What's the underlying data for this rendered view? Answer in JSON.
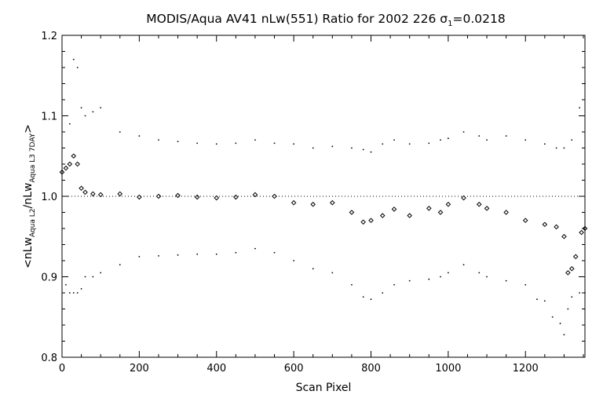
{
  "chart_data": {
    "type": "scatter",
    "title": "MODIS/Aqua AV41 nLw(551) Ratio for 2002 226 σ",
    "title_sub": "1",
    "title_suffix": "=0.0218",
    "xlabel": "Scan Pixel",
    "ylabel": {
      "prefix": "<nLw",
      "sub1": "Aqua L2",
      "middle": "/nLw",
      "sub2": "Aqua L3 7DAY",
      "suffix": ">"
    },
    "xlim": [
      0,
      1354
    ],
    "ylim": [
      0.8,
      1.2
    ],
    "x_ticks": [
      0,
      200,
      400,
      600,
      800,
      1000,
      1200
    ],
    "x_tick_labels": [
      "0",
      "200",
      "400",
      "600",
      "800",
      "1000",
      "1200"
    ],
    "y_ticks": [
      0.8,
      0.9,
      1.0,
      1.1,
      1.2
    ],
    "y_tick_labels": [
      "0.8",
      "0.9",
      "1.0",
      "1.1",
      "1.2"
    ],
    "reference_line": 1.0,
    "grid": false,
    "series": [
      {
        "role": "mean-ratio",
        "marker": "diamond",
        "x": [
          0,
          10,
          20,
          30,
          40,
          50,
          60,
          80,
          100,
          150,
          200,
          250,
          300,
          350,
          400,
          450,
          500,
          550,
          600,
          650,
          700,
          750,
          780,
          800,
          830,
          860,
          900,
          950,
          980,
          1000,
          1040,
          1080,
          1100,
          1150,
          1200,
          1250,
          1280,
          1300,
          1310,
          1320,
          1330,
          1345,
          1354
        ],
        "y": [
          1.03,
          1.035,
          1.04,
          1.05,
          1.04,
          1.01,
          1.005,
          1.003,
          1.002,
          1.003,
          0.999,
          1.0,
          1.001,
          0.999,
          0.998,
          0.999,
          1.002,
          1.0,
          0.992,
          0.99,
          0.992,
          0.98,
          0.968,
          0.97,
          0.976,
          0.984,
          0.976,
          0.985,
          0.98,
          0.99,
          0.998,
          0.99,
          0.985,
          0.98,
          0.97,
          0.965,
          0.962,
          0.95,
          0.905,
          0.91,
          0.925,
          0.955,
          0.96
        ]
      },
      {
        "role": "upper-sigma",
        "marker": "dot",
        "x": [
          20,
          30,
          40,
          50,
          60,
          80,
          100,
          150,
          200,
          250,
          300,
          350,
          400,
          450,
          500,
          550,
          600,
          650,
          700,
          750,
          780,
          800,
          830,
          860,
          900,
          950,
          980,
          1000,
          1040,
          1080,
          1100,
          1150,
          1200,
          1250,
          1280,
          1300,
          1320,
          1340,
          1354
        ],
        "y": [
          1.09,
          1.17,
          1.16,
          1.11,
          1.1,
          1.105,
          1.11,
          1.08,
          1.075,
          1.07,
          1.068,
          1.066,
          1.065,
          1.066,
          1.07,
          1.066,
          1.065,
          1.06,
          1.062,
          1.06,
          1.058,
          1.055,
          1.065,
          1.07,
          1.065,
          1.066,
          1.07,
          1.072,
          1.08,
          1.075,
          1.07,
          1.075,
          1.07,
          1.065,
          1.06,
          1.06,
          1.07,
          1.11,
          1.14
        ]
      },
      {
        "role": "lower-sigma",
        "marker": "dot",
        "x": [
          10,
          20,
          30,
          40,
          50,
          60,
          80,
          100,
          150,
          200,
          250,
          300,
          350,
          400,
          450,
          500,
          550,
          600,
          650,
          700,
          750,
          780,
          800,
          830,
          860,
          900,
          950,
          980,
          1000,
          1040,
          1080,
          1100,
          1150,
          1200,
          1230,
          1250,
          1270,
          1290,
          1300,
          1310,
          1320,
          1340,
          1354
        ],
        "y": [
          0.89,
          0.88,
          0.88,
          0.88,
          0.885,
          0.9,
          0.9,
          0.905,
          0.915,
          0.925,
          0.926,
          0.927,
          0.928,
          0.928,
          0.93,
          0.935,
          0.93,
          0.92,
          0.91,
          0.905,
          0.89,
          0.875,
          0.872,
          0.88,
          0.89,
          0.895,
          0.897,
          0.9,
          0.905,
          0.915,
          0.905,
          0.9,
          0.895,
          0.89,
          0.872,
          0.87,
          0.85,
          0.842,
          0.828,
          0.86,
          0.875,
          0.88,
          0.88
        ]
      }
    ]
  }
}
